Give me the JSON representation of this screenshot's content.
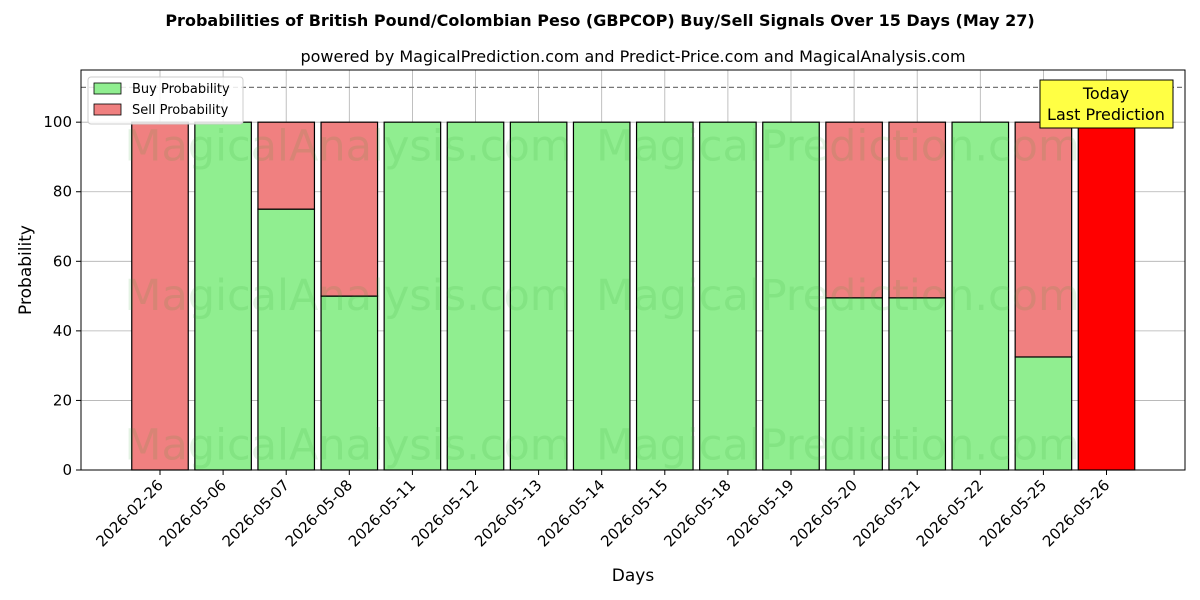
{
  "chart_data": {
    "type": "bar",
    "stacked": true,
    "title": "Probabilities of British Pound/Colombian Peso (GBPCOP) Buy/Sell Signals Over 15 Days (May 27)",
    "subtitle": "powered by MagicalPrediction.com and Predict-Price.com and MagicalAnalysis.com",
    "xlabel": "Days",
    "ylabel": "Probability",
    "ylim": [
      0,
      115
    ],
    "yticks": [
      0,
      20,
      40,
      60,
      80,
      100
    ],
    "reference_line": 110,
    "grid": true,
    "legend_position": "top-left",
    "categories": [
      "2026-02-26",
      "2026-05-06",
      "2026-05-07",
      "2026-05-08",
      "2026-05-11",
      "2026-05-12",
      "2026-05-13",
      "2026-05-14",
      "2026-05-15",
      "2026-05-18",
      "2026-05-19",
      "2026-05-20",
      "2026-05-21",
      "2026-05-22",
      "2026-05-25",
      "2026-05-26"
    ],
    "series": [
      {
        "name": "Buy Probability",
        "color": "#90ee90",
        "values": [
          0,
          100,
          75,
          50,
          100,
          100,
          100,
          100,
          100,
          100,
          100,
          49.5,
          49.5,
          100,
          32.5,
          0
        ]
      },
      {
        "name": "Sell Probability",
        "color": "#f08080",
        "values": [
          100,
          0,
          25,
          50,
          0,
          0,
          0,
          0,
          0,
          0,
          0,
          50.5,
          50.5,
          0,
          67.5,
          100
        ]
      }
    ],
    "highlight": {
      "category": "2026-05-26",
      "color": "#ff0000"
    },
    "annotation": {
      "text_line1": "Today",
      "text_line2": "Last Prediction",
      "color": "#ffff44"
    },
    "watermarks": [
      "MagicalAnalysis.com",
      "MagicalPrediction.com"
    ]
  }
}
